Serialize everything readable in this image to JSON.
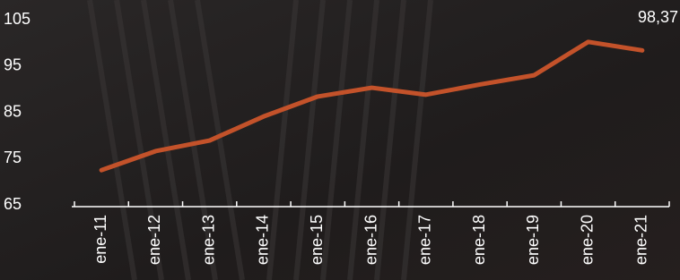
{
  "chart_data": {
    "type": "line",
    "categories": [
      "ene-11",
      "ene-12",
      "ene-13",
      "ene-14",
      "ene-15",
      "ene-16",
      "ene-17",
      "ene-18",
      "ene-19",
      "ene-20",
      "ene-21"
    ],
    "values": [
      72.5,
      76.6,
      78.9,
      84.1,
      88.4,
      90.3,
      88.8,
      91,
      93,
      100.2,
      98.37
    ],
    "value_labels": [
      null,
      null,
      null,
      null,
      null,
      null,
      null,
      null,
      null,
      null,
      "98,37"
    ],
    "color": "#c3522a",
    "ylim": [
      65,
      105
    ],
    "yticks": [
      65,
      75,
      85,
      95,
      105
    ],
    "grid": false
  }
}
